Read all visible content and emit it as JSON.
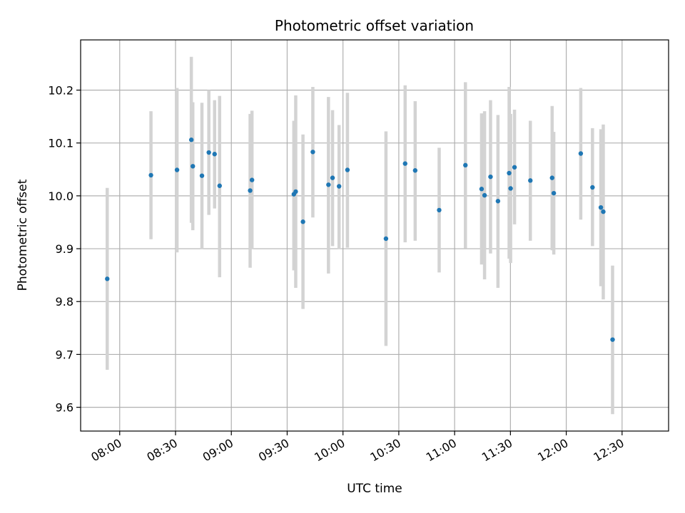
{
  "chart_data": {
    "type": "scatter",
    "title": "Photometric offset variation",
    "xlabel": "UTC time",
    "ylabel": "Photometric offset",
    "x_unit": "minutes since 00:00 UTC",
    "xlim": [
      459,
      775
    ],
    "ylim": [
      9.555,
      10.295
    ],
    "grid": true,
    "x_ticks": [
      {
        "value": 480,
        "label": "08:00"
      },
      {
        "value": 510,
        "label": "08:30"
      },
      {
        "value": 540,
        "label": "09:00"
      },
      {
        "value": 570,
        "label": "09:30"
      },
      {
        "value": 600,
        "label": "10:00"
      },
      {
        "value": 630,
        "label": "10:30"
      },
      {
        "value": 660,
        "label": "11:00"
      },
      {
        "value": 690,
        "label": "11:30"
      },
      {
        "value": 720,
        "label": "12:00"
      },
      {
        "value": 750,
        "label": "12:30"
      }
    ],
    "y_ticks": [
      {
        "value": 9.6,
        "label": "9.6"
      },
      {
        "value": 9.7,
        "label": "9.7"
      },
      {
        "value": 9.8,
        "label": "9.8"
      },
      {
        "value": 9.9,
        "label": "9.9"
      },
      {
        "value": 10.0,
        "label": "10.0"
      },
      {
        "value": 10.1,
        "label": "10.1"
      },
      {
        "value": 10.2,
        "label": "10.2"
      }
    ],
    "point_color": "#1f77b4",
    "errorbar_color": "#d3d3d3",
    "points": [
      {
        "x": 473.3,
        "y": 9.843,
        "lo": 9.671,
        "hi": 10.015
      },
      {
        "x": 496.8,
        "y": 10.039,
        "lo": 9.918,
        "hi": 10.16
      },
      {
        "x": 510.8,
        "y": 10.049,
        "lo": 9.893,
        "hi": 10.204
      },
      {
        "x": 518.5,
        "y": 10.106,
        "lo": 9.949,
        "hi": 10.263
      },
      {
        "x": 519.3,
        "y": 10.056,
        "lo": 9.935,
        "hi": 10.177
      },
      {
        "x": 524.2,
        "y": 10.038,
        "lo": 9.899,
        "hi": 10.176
      },
      {
        "x": 527.9,
        "y": 10.082,
        "lo": 9.964,
        "hi": 10.2
      },
      {
        "x": 531.0,
        "y": 10.079,
        "lo": 9.976,
        "hi": 10.181
      },
      {
        "x": 533.7,
        "y": 10.019,
        "lo": 9.846,
        "hi": 10.189
      },
      {
        "x": 550.1,
        "y": 10.01,
        "lo": 9.864,
        "hi": 10.155
      },
      {
        "x": 551.1,
        "y": 10.03,
        "lo": 9.899,
        "hi": 10.161
      },
      {
        "x": 573.6,
        "y": 10.003,
        "lo": 9.859,
        "hi": 10.142
      },
      {
        "x": 574.6,
        "y": 10.008,
        "lo": 9.826,
        "hi": 10.19
      },
      {
        "x": 578.5,
        "y": 9.951,
        "lo": 9.786,
        "hi": 10.116
      },
      {
        "x": 583.8,
        "y": 10.083,
        "lo": 9.959,
        "hi": 10.206
      },
      {
        "x": 592.2,
        "y": 10.021,
        "lo": 9.853,
        "hi": 10.187
      },
      {
        "x": 594.4,
        "y": 10.034,
        "lo": 9.905,
        "hi": 10.162
      },
      {
        "x": 597.9,
        "y": 10.018,
        "lo": 9.899,
        "hi": 10.134
      },
      {
        "x": 602.4,
        "y": 10.049,
        "lo": 9.902,
        "hi": 10.195
      },
      {
        "x": 623.1,
        "y": 9.919,
        "lo": 9.716,
        "hi": 10.122
      },
      {
        "x": 633.4,
        "y": 10.061,
        "lo": 9.912,
        "hi": 10.209
      },
      {
        "x": 638.8,
        "y": 10.048,
        "lo": 9.915,
        "hi": 10.179
      },
      {
        "x": 651.7,
        "y": 9.973,
        "lo": 9.855,
        "hi": 10.091
      },
      {
        "x": 665.8,
        "y": 10.058,
        "lo": 9.901,
        "hi": 10.215
      },
      {
        "x": 674.5,
        "y": 10.013,
        "lo": 9.87,
        "hi": 10.156
      },
      {
        "x": 676.1,
        "y": 10.001,
        "lo": 9.842,
        "hi": 10.16
      },
      {
        "x": 679.3,
        "y": 10.036,
        "lo": 9.891,
        "hi": 10.181
      },
      {
        "x": 683.3,
        "y": 9.99,
        "lo": 9.826,
        "hi": 10.153
      },
      {
        "x": 689.3,
        "y": 10.043,
        "lo": 9.881,
        "hi": 10.206
      },
      {
        "x": 690.1,
        "y": 10.014,
        "lo": 9.873,
        "hi": 10.155
      },
      {
        "x": 692.2,
        "y": 10.054,
        "lo": 9.946,
        "hi": 10.163
      },
      {
        "x": 700.7,
        "y": 10.029,
        "lo": 9.915,
        "hi": 10.142
      },
      {
        "x": 712.4,
        "y": 10.034,
        "lo": 9.897,
        "hi": 10.17
      },
      {
        "x": 713.3,
        "y": 10.005,
        "lo": 9.889,
        "hi": 10.121
      },
      {
        "x": 727.8,
        "y": 10.08,
        "lo": 9.955,
        "hi": 10.204
      },
      {
        "x": 734.1,
        "y": 10.016,
        "lo": 9.905,
        "hi": 10.128
      },
      {
        "x": 738.6,
        "y": 9.978,
        "lo": 9.829,
        "hi": 10.126
      },
      {
        "x": 739.9,
        "y": 9.97,
        "lo": 9.804,
        "hi": 10.135
      },
      {
        "x": 744.9,
        "y": 9.728,
        "lo": 9.587,
        "hi": 9.868
      }
    ]
  }
}
